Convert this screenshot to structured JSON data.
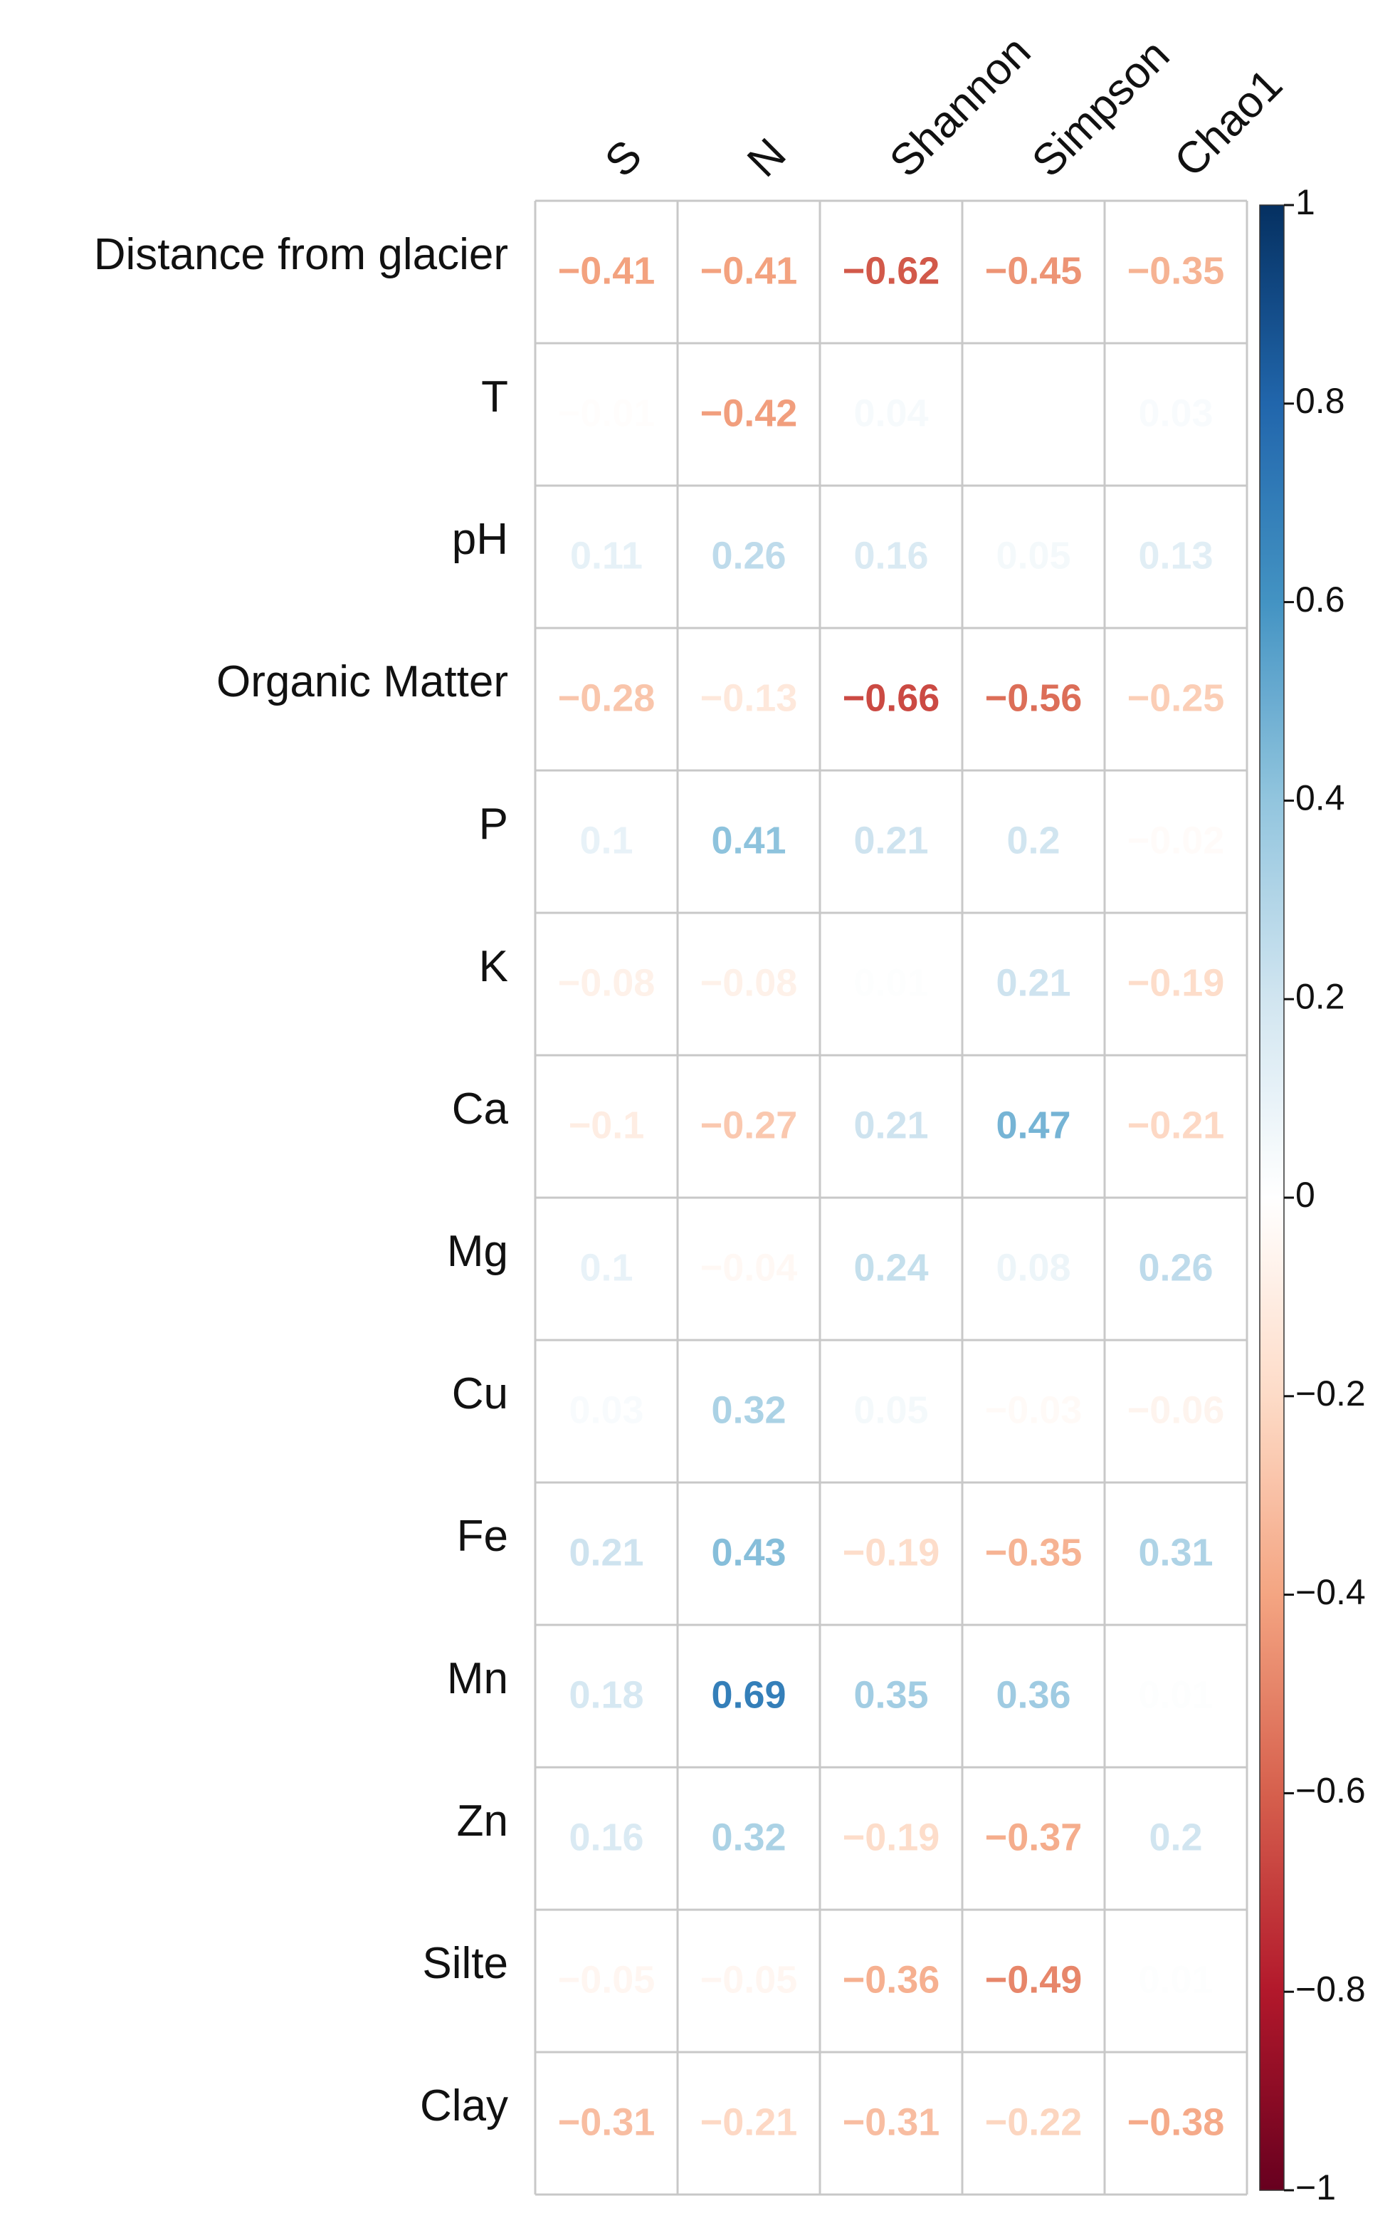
{
  "chart_data": {
    "type": "heatmap",
    "title": "",
    "columns": [
      "S",
      "N",
      "Shannon",
      "Simpson",
      "Chao1"
    ],
    "rows": [
      "Distance from glacier",
      "T",
      "pH",
      "Organic Matter",
      "P",
      "K",
      "Ca",
      "Mg",
      "Cu",
      "Fe",
      "Mn",
      "Zn",
      "Silte",
      "Clay"
    ],
    "values": [
      [
        -0.41,
        -0.41,
        -0.62,
        -0.45,
        -0.35
      ],
      [
        -0.01,
        -0.42,
        0.04,
        0.0,
        0.03
      ],
      [
        0.11,
        0.26,
        0.16,
        0.05,
        0.13
      ],
      [
        -0.28,
        -0.13,
        -0.66,
        -0.56,
        -0.25
      ],
      [
        0.1,
        0.41,
        0.21,
        0.2,
        -0.02
      ],
      [
        -0.08,
        -0.08,
        0.01,
        0.21,
        -0.19
      ],
      [
        -0.1,
        -0.27,
        0.21,
        0.47,
        -0.21
      ],
      [
        0.1,
        -0.04,
        0.24,
        0.08,
        0.26
      ],
      [
        0.03,
        0.32,
        0.05,
        -0.03,
        -0.06
      ],
      [
        0.21,
        0.43,
        -0.19,
        -0.35,
        0.31
      ],
      [
        0.18,
        0.69,
        0.35,
        0.36,
        0.01
      ],
      [
        0.16,
        0.32,
        -0.19,
        -0.37,
        0.2
      ],
      [
        -0.05,
        -0.05,
        -0.36,
        -0.49,
        0.01
      ],
      [
        -0.31,
        -0.21,
        -0.31,
        -0.22,
        -0.38
      ]
    ],
    "cell_labels": [
      [
        "−0.41",
        "−0.41",
        "−0.62",
        "−0.45",
        "−0.35"
      ],
      [
        "−0.01",
        "−0.42",
        "0.04",
        "0",
        "0.03"
      ],
      [
        "0.11",
        "0.26",
        "0.16",
        "0.05",
        "0.13"
      ],
      [
        "−0.28",
        "−0.13",
        "−0.66",
        "−0.56",
        "−0.25"
      ],
      [
        "0.1",
        "0.41",
        "0.21",
        "0.2",
        "−0.02"
      ],
      [
        "−0.08",
        "−0.08",
        "0.01",
        "0.21",
        "−0.19"
      ],
      [
        "−0.1",
        "−0.27",
        "0.21",
        "0.47",
        "−0.21"
      ],
      [
        "0.1",
        "−0.04",
        "0.24",
        "0.08",
        "0.26"
      ],
      [
        "0.03",
        "0.32",
        "0.05",
        "−0.03",
        "−0.06"
      ],
      [
        "0.21",
        "0.43",
        "−0.19",
        "−0.35",
        "0.31"
      ],
      [
        "0.18",
        "0.69",
        "0.35",
        "0.36",
        "0.01"
      ],
      [
        "0.16",
        "0.32",
        "−0.19",
        "−0.37",
        "0.2"
      ],
      [
        "−0.05",
        "−0.05",
        "−0.36",
        "−0.49",
        "0.01"
      ],
      [
        "−0.31",
        "−0.21",
        "−0.31",
        "−0.22",
        "−0.38"
      ]
    ],
    "colorbar": {
      "range": [
        -1,
        1
      ],
      "ticks": [
        1,
        0.8,
        0.6,
        0.4,
        0.2,
        0,
        -0.2,
        -0.4,
        -0.6,
        -0.8,
        -1
      ],
      "tick_labels": [
        "1",
        "0.8",
        "0.6",
        "0.4",
        "0.2",
        "0",
        "−0.2",
        "−0.4",
        "−0.6",
        "−0.8",
        "−1"
      ],
      "colors_positive": [
        "#FFFFFF",
        "#D1E5F0",
        "#92C5DE",
        "#4393C3",
        "#2166AC",
        "#053061"
      ],
      "colors_negative": [
        "#FFFFFF",
        "#FDDBC7",
        "#F4A582",
        "#D6604D",
        "#B2182B",
        "#67001F"
      ]
    },
    "colors": {
      "grid": "#C8C8C8",
      "label": "#111111"
    }
  }
}
